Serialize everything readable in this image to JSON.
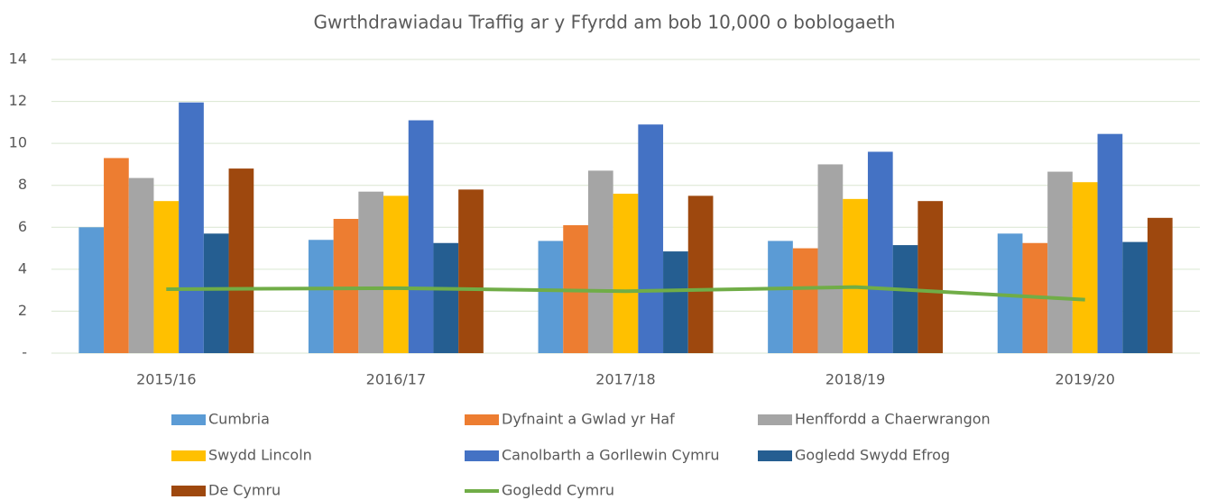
{
  "chart_data": {
    "type": "bar",
    "title": "Gwrthdrawiadau Traffig ar y Ffyrdd am bob 10,000 o boblogaeth",
    "categories": [
      "2015/16",
      "2016/17",
      "2017/18",
      "2018/19",
      "2019/20"
    ],
    "series": [
      {
        "name": "Cumbria",
        "color": "#5b9bd5",
        "values": [
          6.0,
          5.4,
          5.35,
          5.35,
          5.7
        ]
      },
      {
        "name": "Dyfnaint a Gwlad yr Haf",
        "color": "#ed7d31",
        "values": [
          9.3,
          6.4,
          6.1,
          5.0,
          5.25
        ]
      },
      {
        "name": "Henffordd a Chaerwrangon",
        "color": "#a5a5a5",
        "values": [
          8.35,
          7.7,
          8.7,
          9.0,
          8.65
        ]
      },
      {
        "name": "Swydd Lincoln",
        "color": "#ffc000",
        "values": [
          7.25,
          7.5,
          7.6,
          7.35,
          8.15
        ]
      },
      {
        "name": "Canolbarth a Gorllewin Cymru",
        "color": "#4472c4",
        "values": [
          11.95,
          11.1,
          10.9,
          9.6,
          10.45
        ]
      },
      {
        "name": "Gogledd Swydd Efrog",
        "color": "#255e91",
        "values": [
          5.7,
          5.25,
          4.85,
          5.15,
          5.3
        ]
      },
      {
        "name": "De Cymru",
        "color": "#9e480e",
        "values": [
          8.8,
          7.8,
          7.5,
          7.25,
          6.45
        ]
      },
      {
        "name": "Gogledd Cymru",
        "color": "#70ad47",
        "type": "line",
        "values": [
          3.05,
          3.1,
          2.95,
          3.15,
          2.55
        ]
      }
    ],
    "ylim": [
      0,
      14
    ],
    "yticks": [
      {
        "value": 0,
        "label": "-"
      },
      2,
      4,
      6,
      8,
      10,
      12,
      14
    ],
    "grid": true,
    "legend": "bottom"
  }
}
